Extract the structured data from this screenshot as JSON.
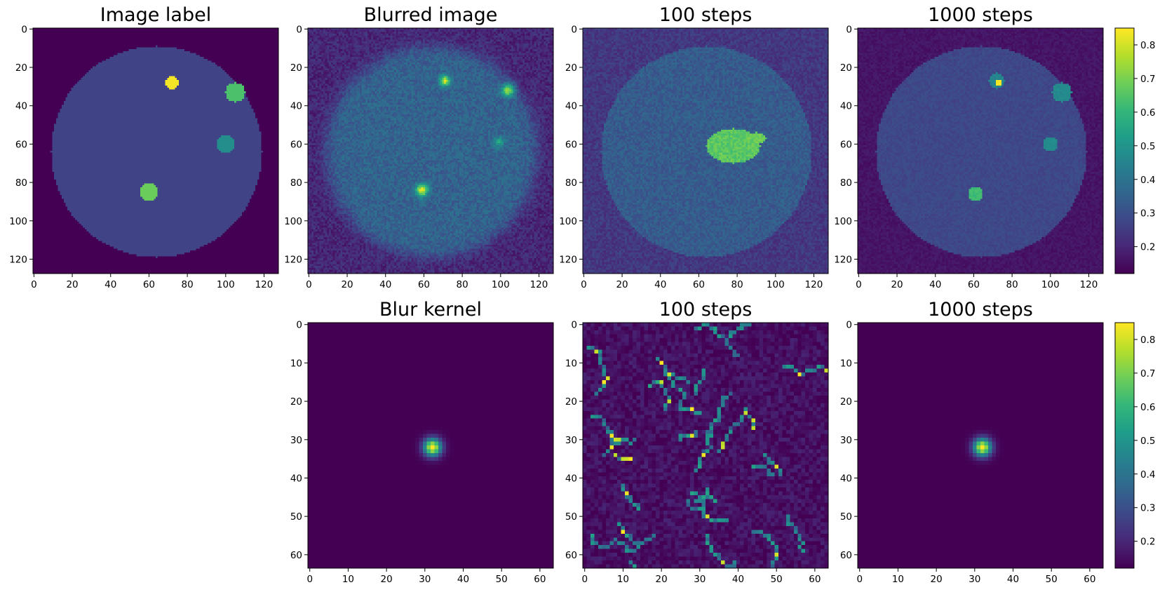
{
  "colormap": {
    "name": "viridis",
    "stops": [
      "#440154",
      "#482878",
      "#3e4989",
      "#31688e",
      "#26828e",
      "#1f9e89",
      "#35b779",
      "#6ece58",
      "#b5de2b",
      "#fde725"
    ]
  },
  "chart_data": [
    {
      "type": "heatmap",
      "title": "Image label",
      "size": 128,
      "x_ticks": [
        0,
        20,
        40,
        60,
        80,
        100,
        120
      ],
      "y_ticks": [
        0,
        20,
        40,
        60,
        80,
        100,
        120
      ],
      "vmin": 0.12,
      "vmax": 0.85,
      "background": 0.12,
      "disk": {
        "cx": 64,
        "cy": 64,
        "r": 55,
        "value": 0.27
      },
      "blobs": [
        {
          "x": 72,
          "y": 28,
          "r": 3.5,
          "value": 0.84
        },
        {
          "x": 105,
          "y": 33,
          "r": 5,
          "value": 0.64
        },
        {
          "x": 100,
          "y": 60,
          "r": 4.5,
          "value": 0.48
        },
        {
          "x": 60,
          "y": 85,
          "r": 4.5,
          "value": 0.68
        }
      ]
    },
    {
      "type": "heatmap",
      "title": "Blurred image",
      "size": 128,
      "x_ticks": [
        0,
        20,
        40,
        60,
        80,
        100,
        120
      ],
      "y_ticks": [
        0,
        20,
        40,
        60,
        80,
        100,
        120
      ],
      "vmin": 0.12,
      "vmax": 0.85,
      "background": 0.2,
      "noise": 0.05,
      "disk": {
        "cx": 64,
        "cy": 64,
        "r": 55,
        "value": 0.35,
        "soft": 4
      },
      "blobs": [
        {
          "x": 71,
          "y": 27,
          "r": 3,
          "value": 0.8
        },
        {
          "x": 104,
          "y": 32,
          "r": 3.5,
          "value": 0.75
        },
        {
          "x": 99,
          "y": 59,
          "r": 3,
          "value": 0.55
        },
        {
          "x": 59,
          "y": 84,
          "r": 3.5,
          "value": 0.82
        }
      ]
    },
    {
      "type": "heatmap",
      "title": "100 steps",
      "size": 128,
      "x_ticks": [
        0,
        20,
        40,
        60,
        80,
        100,
        120
      ],
      "y_ticks": [
        0,
        20,
        40,
        60,
        80,
        100,
        120
      ],
      "vmin": 0.12,
      "vmax": 0.85,
      "background": 0.24,
      "noise": 0.04,
      "disk": {
        "cx": 64,
        "cy": 64,
        "r": 55,
        "value": 0.33
      },
      "blobs": [
        {
          "x": 78,
          "y": 61,
          "r": 9,
          "rx": 14,
          "value": 0.66
        },
        {
          "x": 90,
          "y": 57,
          "r": 3,
          "rx": 5,
          "value": 0.68
        }
      ]
    },
    {
      "type": "heatmap",
      "title": "1000 steps",
      "size": 128,
      "x_ticks": [
        0,
        20,
        40,
        60,
        80,
        100,
        120
      ],
      "y_ticks": [
        0,
        20,
        40,
        60,
        80,
        100,
        120
      ],
      "vmin": 0.12,
      "vmax": 0.85,
      "background": 0.16,
      "noise": 0.02,
      "disk": {
        "cx": 64,
        "cy": 64,
        "r": 55,
        "value": 0.28
      },
      "blobs": [
        {
          "x": 72,
          "y": 27,
          "r": 4,
          "value": 0.45
        },
        {
          "x": 73,
          "y": 28,
          "r": 1.5,
          "value": 0.85
        },
        {
          "x": 106,
          "y": 33,
          "r": 5,
          "value": 0.47
        },
        {
          "x": 100,
          "y": 60,
          "r": 3.8,
          "value": 0.47
        },
        {
          "x": 61,
          "y": 86,
          "r": 3.8,
          "value": 0.62
        }
      ]
    },
    {
      "type": "heatmap",
      "title": "Blur kernel",
      "size": 64,
      "x_ticks": [
        0,
        10,
        20,
        30,
        40,
        50,
        60
      ],
      "y_ticks": [
        0,
        10,
        20,
        30,
        40,
        50,
        60
      ],
      "vmin": 0,
      "vmax": 1,
      "gaussian": {
        "cx": 32,
        "cy": 32,
        "sigma": 1.6,
        "peak": 1.0
      }
    },
    {
      "type": "heatmap",
      "title": "100 steps",
      "size": 64,
      "x_ticks": [
        0,
        10,
        20,
        30,
        40,
        50,
        60
      ],
      "y_ticks": [
        0,
        10,
        20,
        30,
        40,
        50,
        60
      ],
      "vmin": 0,
      "vmax": 1,
      "background": 0.04,
      "noise": 0.06,
      "strands": {
        "count": 32,
        "seed": 7,
        "value": 0.45,
        "hot": 0.95
      }
    },
    {
      "type": "heatmap",
      "title": "1000 steps",
      "size": 64,
      "x_ticks": [
        0,
        10,
        20,
        30,
        40,
        50,
        60
      ],
      "y_ticks": [
        0,
        10,
        20,
        30,
        40,
        50,
        60
      ],
      "vmin": 0,
      "vmax": 1,
      "gaussian": {
        "cx": 32,
        "cy": 32,
        "sigma": 1.6,
        "peak": 1.0
      }
    }
  ],
  "colorbars": [
    {
      "ticks": [
        "0.2",
        "0.3",
        "0.4",
        "0.5",
        "0.6",
        "0.7",
        "0.8"
      ],
      "values": [
        0.2,
        0.3,
        0.4,
        0.5,
        0.6,
        0.7,
        0.8
      ],
      "vmin": 0.12,
      "vmax": 0.85
    },
    {
      "ticks": [
        "0.2",
        "0.3",
        "0.4",
        "0.5",
        "0.6",
        "0.7",
        "0.8"
      ],
      "values": [
        0.2,
        0.3,
        0.4,
        0.5,
        0.6,
        0.7,
        0.8
      ],
      "vmin": 0.12,
      "vmax": 0.85
    }
  ]
}
